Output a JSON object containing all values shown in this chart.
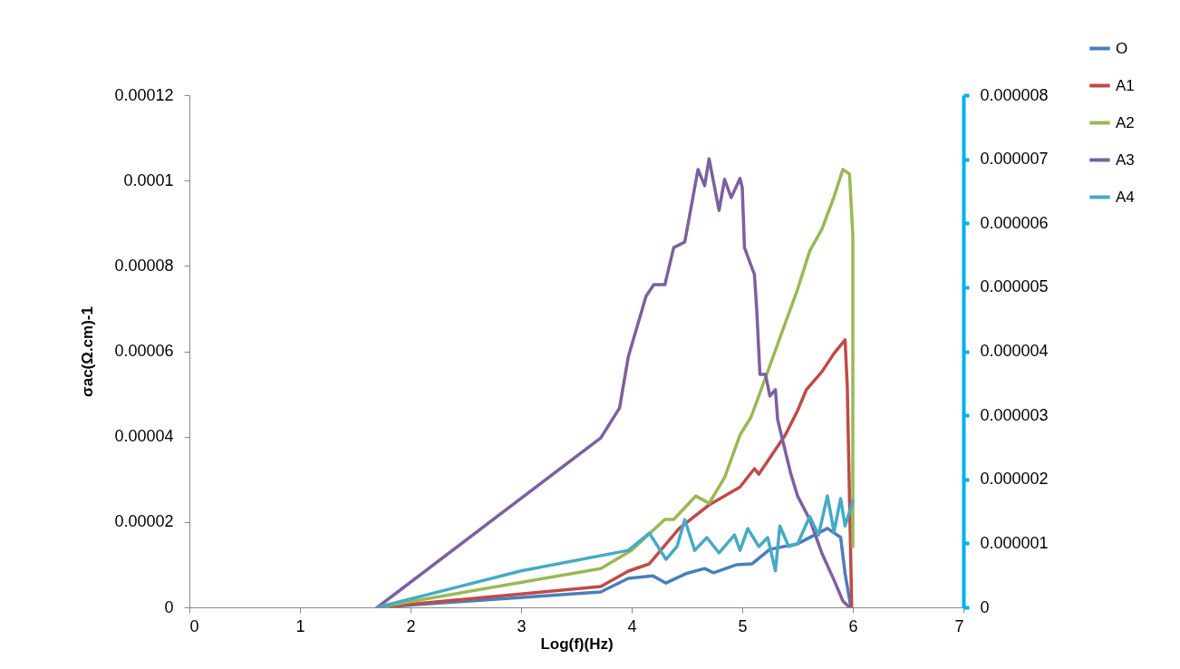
{
  "chart_data": {
    "type": "line",
    "xlabel": "Log(f)(Hz)",
    "ylabel": "σac(Ω.cm)-1",
    "xlim": [
      0,
      7
    ],
    "xticks": [
      0,
      1,
      2,
      3,
      4,
      5,
      6,
      7
    ],
    "ylim": [
      0,
      0.00012
    ],
    "yticks": [
      0,
      {
        "value": 2e-05,
        "label": "0.00002"
      },
      {
        "value": 4e-05,
        "label": "0.00004"
      },
      {
        "value": 6e-05,
        "label": "0.00006"
      },
      {
        "value": 8e-05,
        "label": "0.00008"
      },
      {
        "value": 0.0001,
        "label": "0.0001"
      },
      {
        "value": 0.00012,
        "label": "0.00012"
      }
    ],
    "y2lim": [
      0,
      8e-06
    ],
    "y2ticks": [
      0,
      {
        "value": 1e-06,
        "label": "0.000001"
      },
      {
        "value": 2e-06,
        "label": "0.000002"
      },
      {
        "value": 3e-06,
        "label": "0.000003"
      },
      {
        "value": 4e-06,
        "label": "0.000004"
      },
      {
        "value": 5e-06,
        "label": "0.000005"
      },
      {
        "value": 6e-06,
        "label": "0.000006"
      },
      {
        "value": 7e-06,
        "label": "0.000007"
      },
      {
        "value": 8e-06,
        "label": "0.000008"
      }
    ],
    "legend": "top right",
    "series": [
      {
        "name": "O",
        "color": "#4a7ebb",
        "x": [
          1.7,
          3.72,
          3.97,
          4.19,
          4.31,
          4.49,
          4.66,
          4.74,
          4.95,
          5.09,
          5.25,
          5.5,
          5.77,
          5.89,
          5.93,
          5.98
        ],
        "values": [
          0,
          3.6e-06,
          6.8e-06,
          7.4e-06,
          5.7e-06,
          7.9e-06,
          9.1e-06,
          8.1e-06,
          1e-05,
          1.02e-05,
          1.36e-05,
          1.49e-05,
          1.85e-05,
          1.64e-05,
          7.9e-06,
          4e-07
        ]
      },
      {
        "name": "A1",
        "color": "#be4b48",
        "x": [
          1.7,
          3.72,
          3.97,
          4.16,
          4.43,
          4.7,
          4.98,
          5.11,
          5.15,
          5.39,
          5.5,
          5.58,
          5.72,
          5.83,
          5.93,
          5.95,
          5.99
        ],
        "values": [
          0,
          4.9e-06,
          8.5e-06,
          1.02e-05,
          1.85e-05,
          2.4e-05,
          2.82e-05,
          3.25e-05,
          3.12e-05,
          4.04e-05,
          4.61e-05,
          5.1e-05,
          5.52e-05,
          5.95e-05,
          6.27e-05,
          5.16e-05,
          0
        ]
      },
      {
        "name": "A2",
        "color": "#98b954",
        "x": [
          1.7,
          3.72,
          4.0,
          4.3,
          4.38,
          4.58,
          4.7,
          4.84,
          4.98,
          5.08,
          5.2,
          5.34,
          5.5,
          5.61,
          5.72,
          5.83,
          5.91,
          5.97,
          6.0,
          6.0
        ],
        "values": [
          0,
          9.1e-06,
          1.34e-05,
          2.06e-05,
          2.06e-05,
          2.61e-05,
          2.44e-05,
          3.04e-05,
          4.04e-05,
          4.46e-05,
          5.31e-05,
          6.31e-05,
          7.45e-05,
          8.35e-05,
          8.86e-05,
          9.62e-05,
          0.0001026,
          0.0001015,
          8.71e-05,
          1.42e-05
        ]
      },
      {
        "name": "A3",
        "color": "#7d60a0",
        "x": [
          1.7,
          3.72,
          3.89,
          3.97,
          4.13,
          4.2,
          4.3,
          4.38,
          4.48,
          4.6,
          4.66,
          4.7,
          4.79,
          4.84,
          4.9,
          4.98,
          5.0,
          5.02,
          5.11,
          5.13,
          5.16,
          5.21,
          5.25,
          5.3,
          5.32,
          5.38,
          5.44,
          5.5,
          5.61,
          5.72,
          5.83,
          5.91,
          5.97
        ],
        "values": [
          0,
          3.97e-05,
          4.67e-05,
          5.88e-05,
          7.29e-05,
          7.56e-05,
          7.56e-05,
          8.43e-05,
          8.56e-05,
          0.0001026,
          9.88e-05,
          0.0001051,
          9.3e-05,
          0.0001003,
          9.6e-05,
          0.0001005,
          9.83e-05,
          8.43e-05,
          7.8e-05,
          7.01e-05,
          5.46e-05,
          5.46e-05,
          4.95e-05,
          5.1e-05,
          4.4e-05,
          3.76e-05,
          3.12e-05,
          2.61e-05,
          2.06e-05,
          1.27e-05,
          6.4e-06,
          1.5e-06,
          0
        ]
      },
      {
        "name": "A4",
        "color": "#46aac5",
        "axis": "y2",
        "x": [
          1.7,
          3.0,
          3.97,
          4.16,
          4.31,
          4.41,
          4.48,
          4.57,
          4.68,
          4.79,
          4.93,
          4.98,
          5.05,
          5.15,
          5.23,
          5.3,
          5.34,
          5.42,
          5.5,
          5.61,
          5.69,
          5.77,
          5.83,
          5.89,
          5.93,
          6.0
        ],
        "values": [
          0,
          5.7e-07,
          8.9e-07,
          1.16e-06,
          7.5e-07,
          9.5e-07,
          1.37e-06,
          8.9e-07,
          1.09e-06,
          8.5e-07,
          1.13e-06,
          8.9e-07,
          1.23e-06,
          9.5e-07,
          1.09e-06,
          5.7e-07,
          1.27e-06,
          9.5e-07,
          9.9e-07,
          1.42e-06,
          1.13e-06,
          1.74e-06,
          1.18e-06,
          1.7e-06,
          1.27e-06,
          1.66e-06
        ]
      }
    ]
  }
}
